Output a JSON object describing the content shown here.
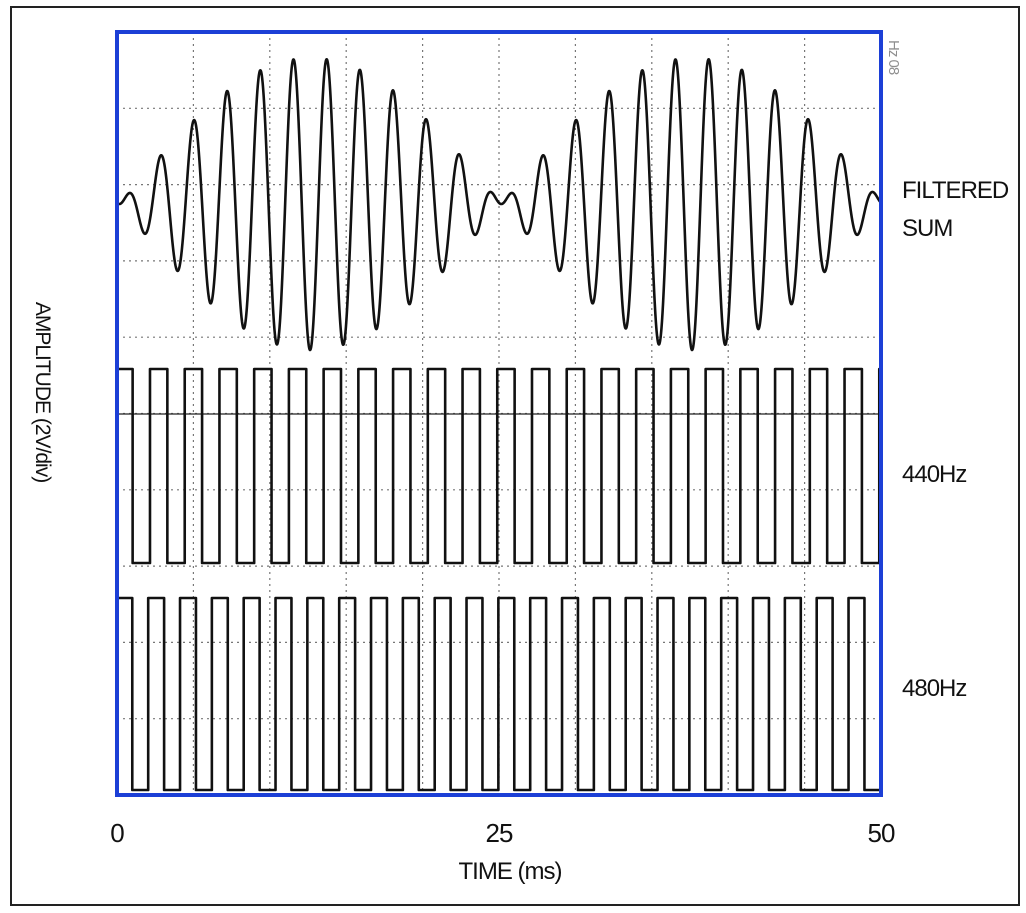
{
  "chart_data": {
    "type": "line",
    "title": "",
    "xlabel": "TIME (ms)",
    "ylabel": "AMPLITUDE (2V/div)",
    "xlim": [
      0,
      50
    ],
    "x_ticks": [
      "0",
      "25",
      "50"
    ],
    "grid": true,
    "series": [
      {
        "name": "FILTERED SUM",
        "kind": "sine-sum",
        "components_hz": [
          440,
          480
        ],
        "beat_hz": 40
      },
      {
        "name": "440Hz",
        "kind": "square",
        "frequency_hz": 440,
        "duty": 0.5
      },
      {
        "name": "480Hz",
        "kind": "square",
        "frequency_hz": 480,
        "duty": 0.5
      }
    ],
    "partial_label": "Hz 08",
    "colors": {
      "plot_border": "#1c3fd6",
      "trace": "#111111",
      "grid": "#777777"
    }
  }
}
